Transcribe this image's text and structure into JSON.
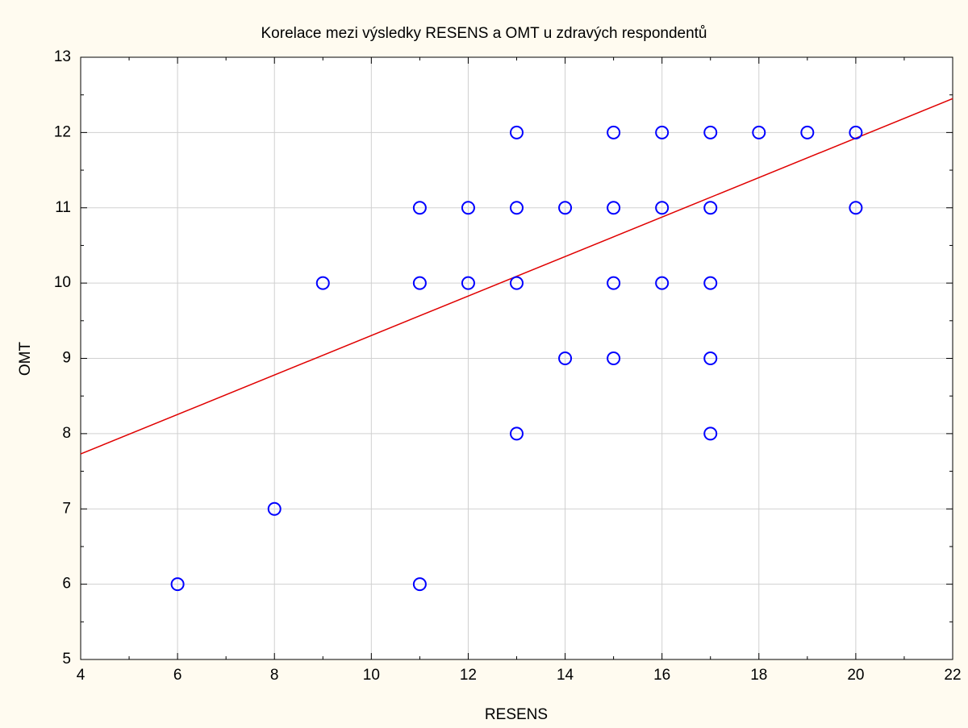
{
  "chart_data": {
    "type": "scatter",
    "title": "Korelace mezi výsledky RESENS a OMT u zdravých respondentů",
    "xlabel": "RESENS",
    "ylabel": "OMT",
    "series": [
      {
        "color": "#0000ff",
        "x": [
          6,
          8,
          11,
          9,
          11,
          11,
          12,
          12,
          13,
          13,
          13,
          13,
          14,
          14,
          15,
          15,
          15,
          15,
          16,
          16,
          16,
          17,
          17,
          17,
          17,
          17,
          18,
          19,
          20,
          20
        ],
        "values": [
          6,
          7,
          6,
          10,
          10,
          11,
          10,
          11,
          12,
          11,
          10,
          8,
          11,
          9,
          12,
          11,
          10,
          9,
          12,
          11,
          10,
          12,
          11,
          10,
          9,
          8,
          12,
          12,
          12,
          11
        ]
      }
    ],
    "fit": {
      "color": "#e00000",
      "x": [
        4,
        22
      ],
      "values": [
        7.73,
        12.45
      ]
    },
    "xlim": [
      4,
      22
    ],
    "ylim": [
      5,
      13
    ],
    "xticks": [
      4,
      6,
      8,
      10,
      12,
      14,
      16,
      18,
      20,
      22
    ],
    "yticks": [
      5,
      6,
      7,
      8,
      9,
      10,
      11,
      12,
      13
    ],
    "xminorticks": [
      5,
      7,
      9,
      11,
      13,
      15,
      17,
      19,
      21
    ],
    "yminorticks": [
      5.5,
      6.5,
      7.5,
      8.5,
      9.5,
      10.5,
      11.5,
      12.5
    ],
    "grid": true
  }
}
